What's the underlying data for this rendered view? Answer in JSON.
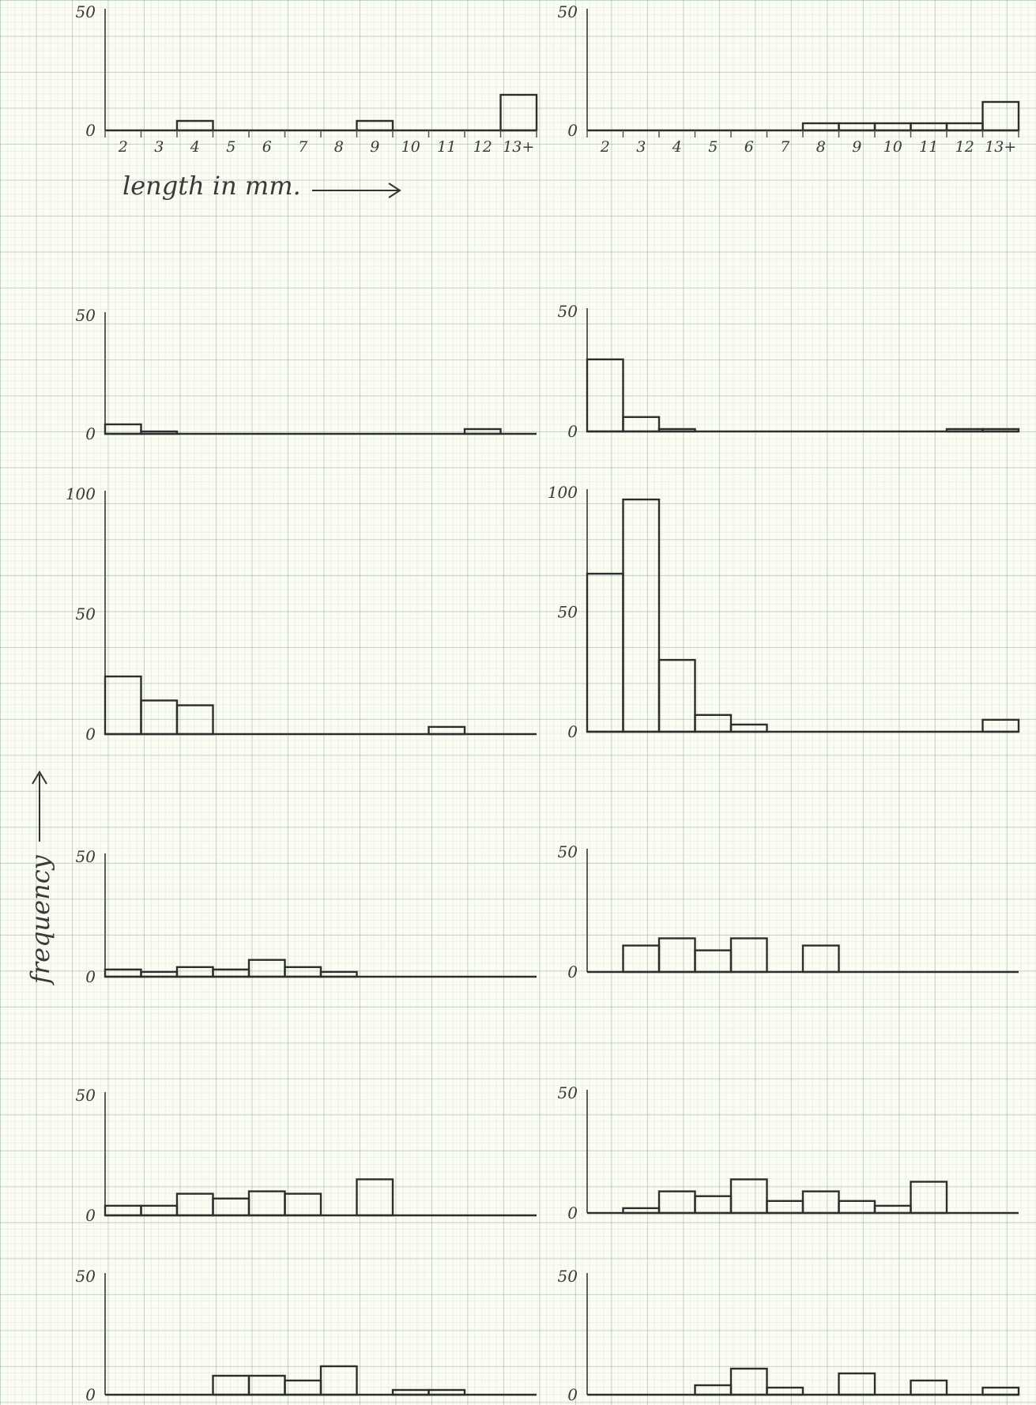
{
  "colors": {
    "ink": "#2e2e2e",
    "paper": "#fbfdf2",
    "grid": "#8fb0ae"
  },
  "x_axis_label": "length in mm.",
  "y_axis_label": "frequency",
  "chart_data": [
    {
      "type": "bar",
      "panel": "row1-left",
      "categories": [
        "2",
        "3",
        "4",
        "5",
        "6",
        "7",
        "8",
        "9",
        "10",
        "11",
        "12",
        "13+"
      ],
      "values": [
        0,
        0,
        4,
        0,
        0,
        0,
        0,
        4,
        0,
        0,
        0,
        15
      ],
      "ylim": [
        0,
        50
      ],
      "yticks": [
        "50",
        "0"
      ],
      "tick_labels": [
        "2",
        "3",
        "4",
        "5",
        "6",
        "7",
        "8",
        "9",
        "10",
        "11",
        "12",
        "13+"
      ]
    },
    {
      "type": "bar",
      "panel": "row1-right",
      "categories": [
        "2",
        "3",
        "4",
        "5",
        "6",
        "7",
        "8",
        "9",
        "10",
        "11",
        "12",
        "13+"
      ],
      "values": [
        0,
        0,
        0,
        0,
        0,
        0,
        3,
        3,
        3,
        3,
        3,
        12
      ],
      "ylim": [
        0,
        50
      ],
      "yticks": [
        "50",
        "0"
      ],
      "tick_labels": [
        "2",
        "3",
        "4",
        "5",
        "6",
        "7",
        "8",
        "9",
        "10",
        "11",
        "12",
        "13+"
      ]
    },
    {
      "type": "bar",
      "panel": "row2-left",
      "categories": [
        "2",
        "3",
        "4",
        "5",
        "6",
        "7",
        "8",
        "9",
        "10",
        "11",
        "12",
        "13+"
      ],
      "values": [
        4,
        1,
        0,
        0,
        0,
        0,
        0,
        0,
        0,
        0,
        2,
        0
      ],
      "ylim": [
        0,
        50
      ],
      "yticks": [
        "50",
        "0"
      ],
      "tick_labels": []
    },
    {
      "type": "bar",
      "panel": "row2-right",
      "categories": [
        "2",
        "3",
        "4",
        "5",
        "6",
        "7",
        "8",
        "9",
        "10",
        "11",
        "12",
        "13+"
      ],
      "values": [
        30,
        6,
        1,
        0,
        0,
        0,
        0,
        0,
        0,
        0,
        1,
        1
      ],
      "ylim": [
        0,
        50
      ],
      "yticks": [
        "50",
        "0"
      ],
      "tick_labels": []
    },
    {
      "type": "bar",
      "panel": "row3-left",
      "categories": [
        "2",
        "3",
        "4",
        "5",
        "6",
        "7",
        "8",
        "9",
        "10",
        "11",
        "12",
        "13+"
      ],
      "values": [
        24,
        14,
        12,
        0,
        0,
        0,
        0,
        0,
        0,
        3,
        0,
        0
      ],
      "ylim": [
        0,
        100
      ],
      "yticks": [
        "100",
        "50",
        "0"
      ],
      "tick_labels": []
    },
    {
      "type": "bar",
      "panel": "row3-right",
      "categories": [
        "2",
        "3",
        "4",
        "5",
        "6",
        "7",
        "8",
        "9",
        "10",
        "11",
        "12",
        "13+"
      ],
      "values": [
        66,
        97,
        30,
        7,
        3,
        0,
        0,
        0,
        0,
        0,
        0,
        5
      ],
      "ylim": [
        0,
        100
      ],
      "yticks": [
        "100",
        "50",
        "0"
      ],
      "tick_labels": []
    },
    {
      "type": "bar",
      "panel": "row4-left",
      "categories": [
        "2",
        "3",
        "4",
        "5",
        "6",
        "7",
        "8",
        "9",
        "10",
        "11",
        "12",
        "13+"
      ],
      "values": [
        3,
        2,
        4,
        3,
        7,
        4,
        2,
        0,
        0,
        0,
        0,
        0
      ],
      "ylim": [
        0,
        50
      ],
      "yticks": [
        "50",
        "0"
      ],
      "tick_labels": []
    },
    {
      "type": "bar",
      "panel": "row4-right",
      "categories": [
        "2",
        "3",
        "4",
        "5",
        "6",
        "7",
        "8",
        "9",
        "10",
        "11",
        "12",
        "13+"
      ],
      "values": [
        0,
        11,
        14,
        9,
        14,
        0,
        11,
        0,
        0,
        0,
        0,
        0
      ],
      "ylim": [
        0,
        50
      ],
      "yticks": [
        "50",
        "0"
      ],
      "tick_labels": []
    },
    {
      "type": "bar",
      "panel": "row5-left",
      "categories": [
        "2",
        "3",
        "4",
        "5",
        "6",
        "7",
        "8",
        "9",
        "10",
        "11",
        "12",
        "13+"
      ],
      "values": [
        4,
        4,
        9,
        7,
        10,
        9,
        0,
        15,
        0,
        0,
        0,
        0
      ],
      "ylim": [
        0,
        50
      ],
      "yticks": [
        "50",
        "0"
      ],
      "tick_labels": []
    },
    {
      "type": "bar",
      "panel": "row5-right",
      "categories": [
        "2",
        "3",
        "4",
        "5",
        "6",
        "7",
        "8",
        "9",
        "10",
        "11",
        "12",
        "13+"
      ],
      "values": [
        0,
        2,
        9,
        7,
        14,
        5,
        9,
        5,
        3,
        13,
        0,
        0
      ],
      "ylim": [
        0,
        50
      ],
      "yticks": [
        "50",
        "0"
      ],
      "tick_labels": []
    },
    {
      "type": "bar",
      "panel": "row6-left",
      "categories": [
        "2",
        "3",
        "4",
        "5",
        "6",
        "7",
        "8",
        "9",
        "10",
        "11",
        "12",
        "13+"
      ],
      "values": [
        0,
        0,
        0,
        8,
        8,
        6,
        12,
        0,
        2,
        2,
        0,
        0
      ],
      "ylim": [
        0,
        50
      ],
      "yticks": [
        "50",
        "0"
      ],
      "tick_labels": []
    },
    {
      "type": "bar",
      "panel": "row6-right",
      "categories": [
        "2",
        "3",
        "4",
        "5",
        "6",
        "7",
        "8",
        "9",
        "10",
        "11",
        "12",
        "13+"
      ],
      "values": [
        0,
        0,
        0,
        4,
        11,
        3,
        0,
        9,
        0,
        6,
        0,
        3
      ],
      "ylim": [
        0,
        50
      ],
      "yticks": [
        "50",
        "0"
      ],
      "tick_labels": []
    }
  ]
}
